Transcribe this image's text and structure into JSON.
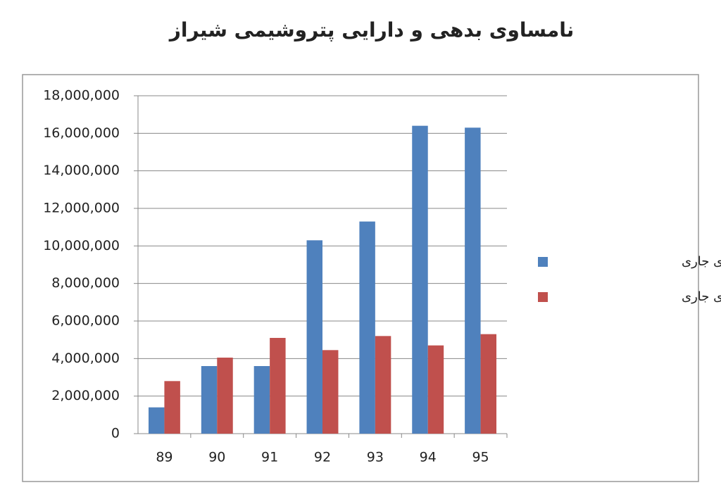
{
  "chart_data": {
    "type": "bar",
    "title": "نامساوی بدهی و دارایی پتروشیمی شیراز",
    "categories": [
      "89",
      "90",
      "91",
      "92",
      "93",
      "94",
      "95"
    ],
    "series": [
      {
        "name": "جمع بدهی‌های جاری",
        "color": "#4f81bd",
        "values": [
          1400000,
          3600000,
          3600000,
          10300000,
          11300000,
          16400000,
          16300000
        ]
      },
      {
        "name": "جمع دارایی‌های جاری",
        "color": "#c0504d",
        "values": [
          2800000,
          4050000,
          5100000,
          4450000,
          5200000,
          4700000,
          5300000
        ]
      }
    ],
    "ylim": [
      0,
      18000000
    ],
    "yticks": [
      0,
      {
        "value": 2000000,
        "label": "2,000,000"
      },
      {
        "value": 4000000,
        "label": "4,000,000"
      },
      {
        "value": 6000000,
        "label": "6,000,000"
      },
      {
        "value": 8000000,
        "label": "8,000,000"
      },
      {
        "value": 10000000,
        "label": "10,000,000"
      },
      {
        "value": 12000000,
        "label": "12,000,000"
      },
      {
        "value": 14000000,
        "label": "14,000,000"
      },
      {
        "value": 16000000,
        "label": "16,000,000"
      },
      {
        "value": 18000000,
        "label": "18,000,000"
      }
    ],
    "grid": true,
    "legend": "right"
  }
}
